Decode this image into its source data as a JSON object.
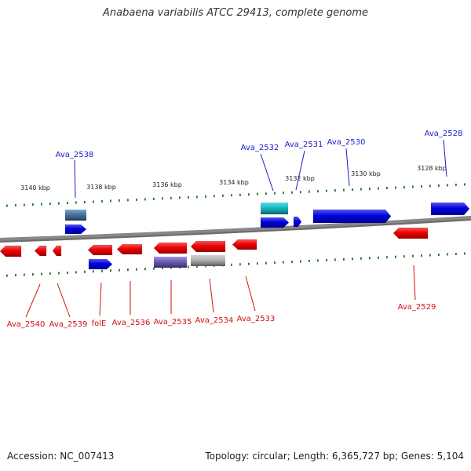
{
  "title": "Anabaena variabilis ATCC 29413, complete genome",
  "footer": {
    "accession": "Accession: NC_007413",
    "summary": "Topology: circular; Length: 6,365,727 bp; Genes: 5,104"
  },
  "colors": {
    "forward": "#0000e0",
    "reverse": "#ee0000",
    "forward_label": "#1a1ad0",
    "reverse_label": "#d01010",
    "tick": "#1a7a1a",
    "backbone": "#888888",
    "rna_teal": "#16c0c8",
    "rna_steelblue": "#4a78a8",
    "rna_purple": "#7060c0",
    "rna_gray": "#b8b8b8"
  },
  "scale": {
    "unit": "kbp",
    "labels": [
      "3140 kbp",
      "3138 kbp",
      "3136 kbp",
      "3134 kbp",
      "3132 kbp",
      "3130 kbp",
      "3128 kbp"
    ]
  },
  "genes": [
    {
      "label": "Ava_2538",
      "strand": "forward"
    },
    {
      "label": "Ava_2532",
      "strand": "forward"
    },
    {
      "label": "Ava_2531",
      "strand": "forward"
    },
    {
      "label": "Ava_2530",
      "strand": "forward"
    },
    {
      "label": "Ava_2528",
      "strand": "forward"
    },
    {
      "label": "Ava_2540",
      "strand": "reverse"
    },
    {
      "label": "Ava_2539",
      "strand": "reverse"
    },
    {
      "label": "folE",
      "strand": "reverse"
    },
    {
      "label": "Ava_2536",
      "strand": "reverse"
    },
    {
      "label": "Ava_2535",
      "strand": "reverse"
    },
    {
      "label": "Ava_2534",
      "strand": "reverse"
    },
    {
      "label": "Ava_2533",
      "strand": "reverse"
    },
    {
      "label": "Ava_2529",
      "strand": "reverse"
    }
  ],
  "rna_features": [
    {
      "color": "rna_steelblue"
    },
    {
      "color": "rna_teal"
    },
    {
      "color": "rna_purple"
    },
    {
      "color": "rna_gray"
    }
  ]
}
